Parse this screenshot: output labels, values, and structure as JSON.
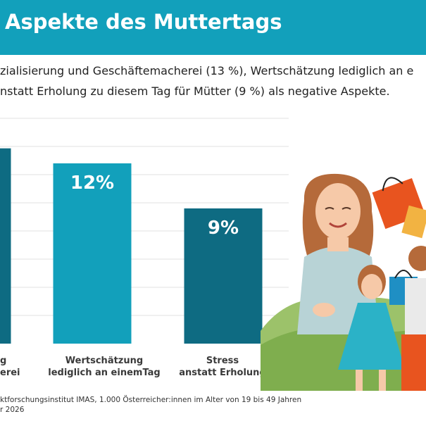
{
  "header": {
    "title": "Aspekte des Muttertags",
    "accent_color": "#12a0bb"
  },
  "subtitle": {
    "line1": "zialisierung und Geschäftemacherei (13 %), Wertschätzung lediglich an e",
    "line2": "nstatt Erholung zu diesem Tag für Mütter (9 %) als negative Aspekte."
  },
  "chart_data": {
    "type": "bar",
    "categories": [
      {
        "line1": "g",
        "line2": "erei"
      },
      {
        "line1": "Wertschätzung",
        "line2": "lediglich an einemTag"
      },
      {
        "line1": "Stress",
        "line2": "anstatt Erholung"
      }
    ],
    "values": [
      13,
      12,
      9
    ],
    "value_labels": [
      "",
      "12%",
      "9%"
    ],
    "colors": [
      "#0e6b82",
      "#12a0bb",
      "#0e6b82"
    ],
    "ylim": [
      0,
      15
    ],
    "grid": true
  },
  "source": {
    "line1": "ktforschungsinstitut IMAS, 1.000 Österreicher:innen im Alter von 19 bis 49 Jahren",
    "line2": "r 2026"
  },
  "illustration": {
    "icon": "mother-with-children-shopping-bags-illustration"
  }
}
